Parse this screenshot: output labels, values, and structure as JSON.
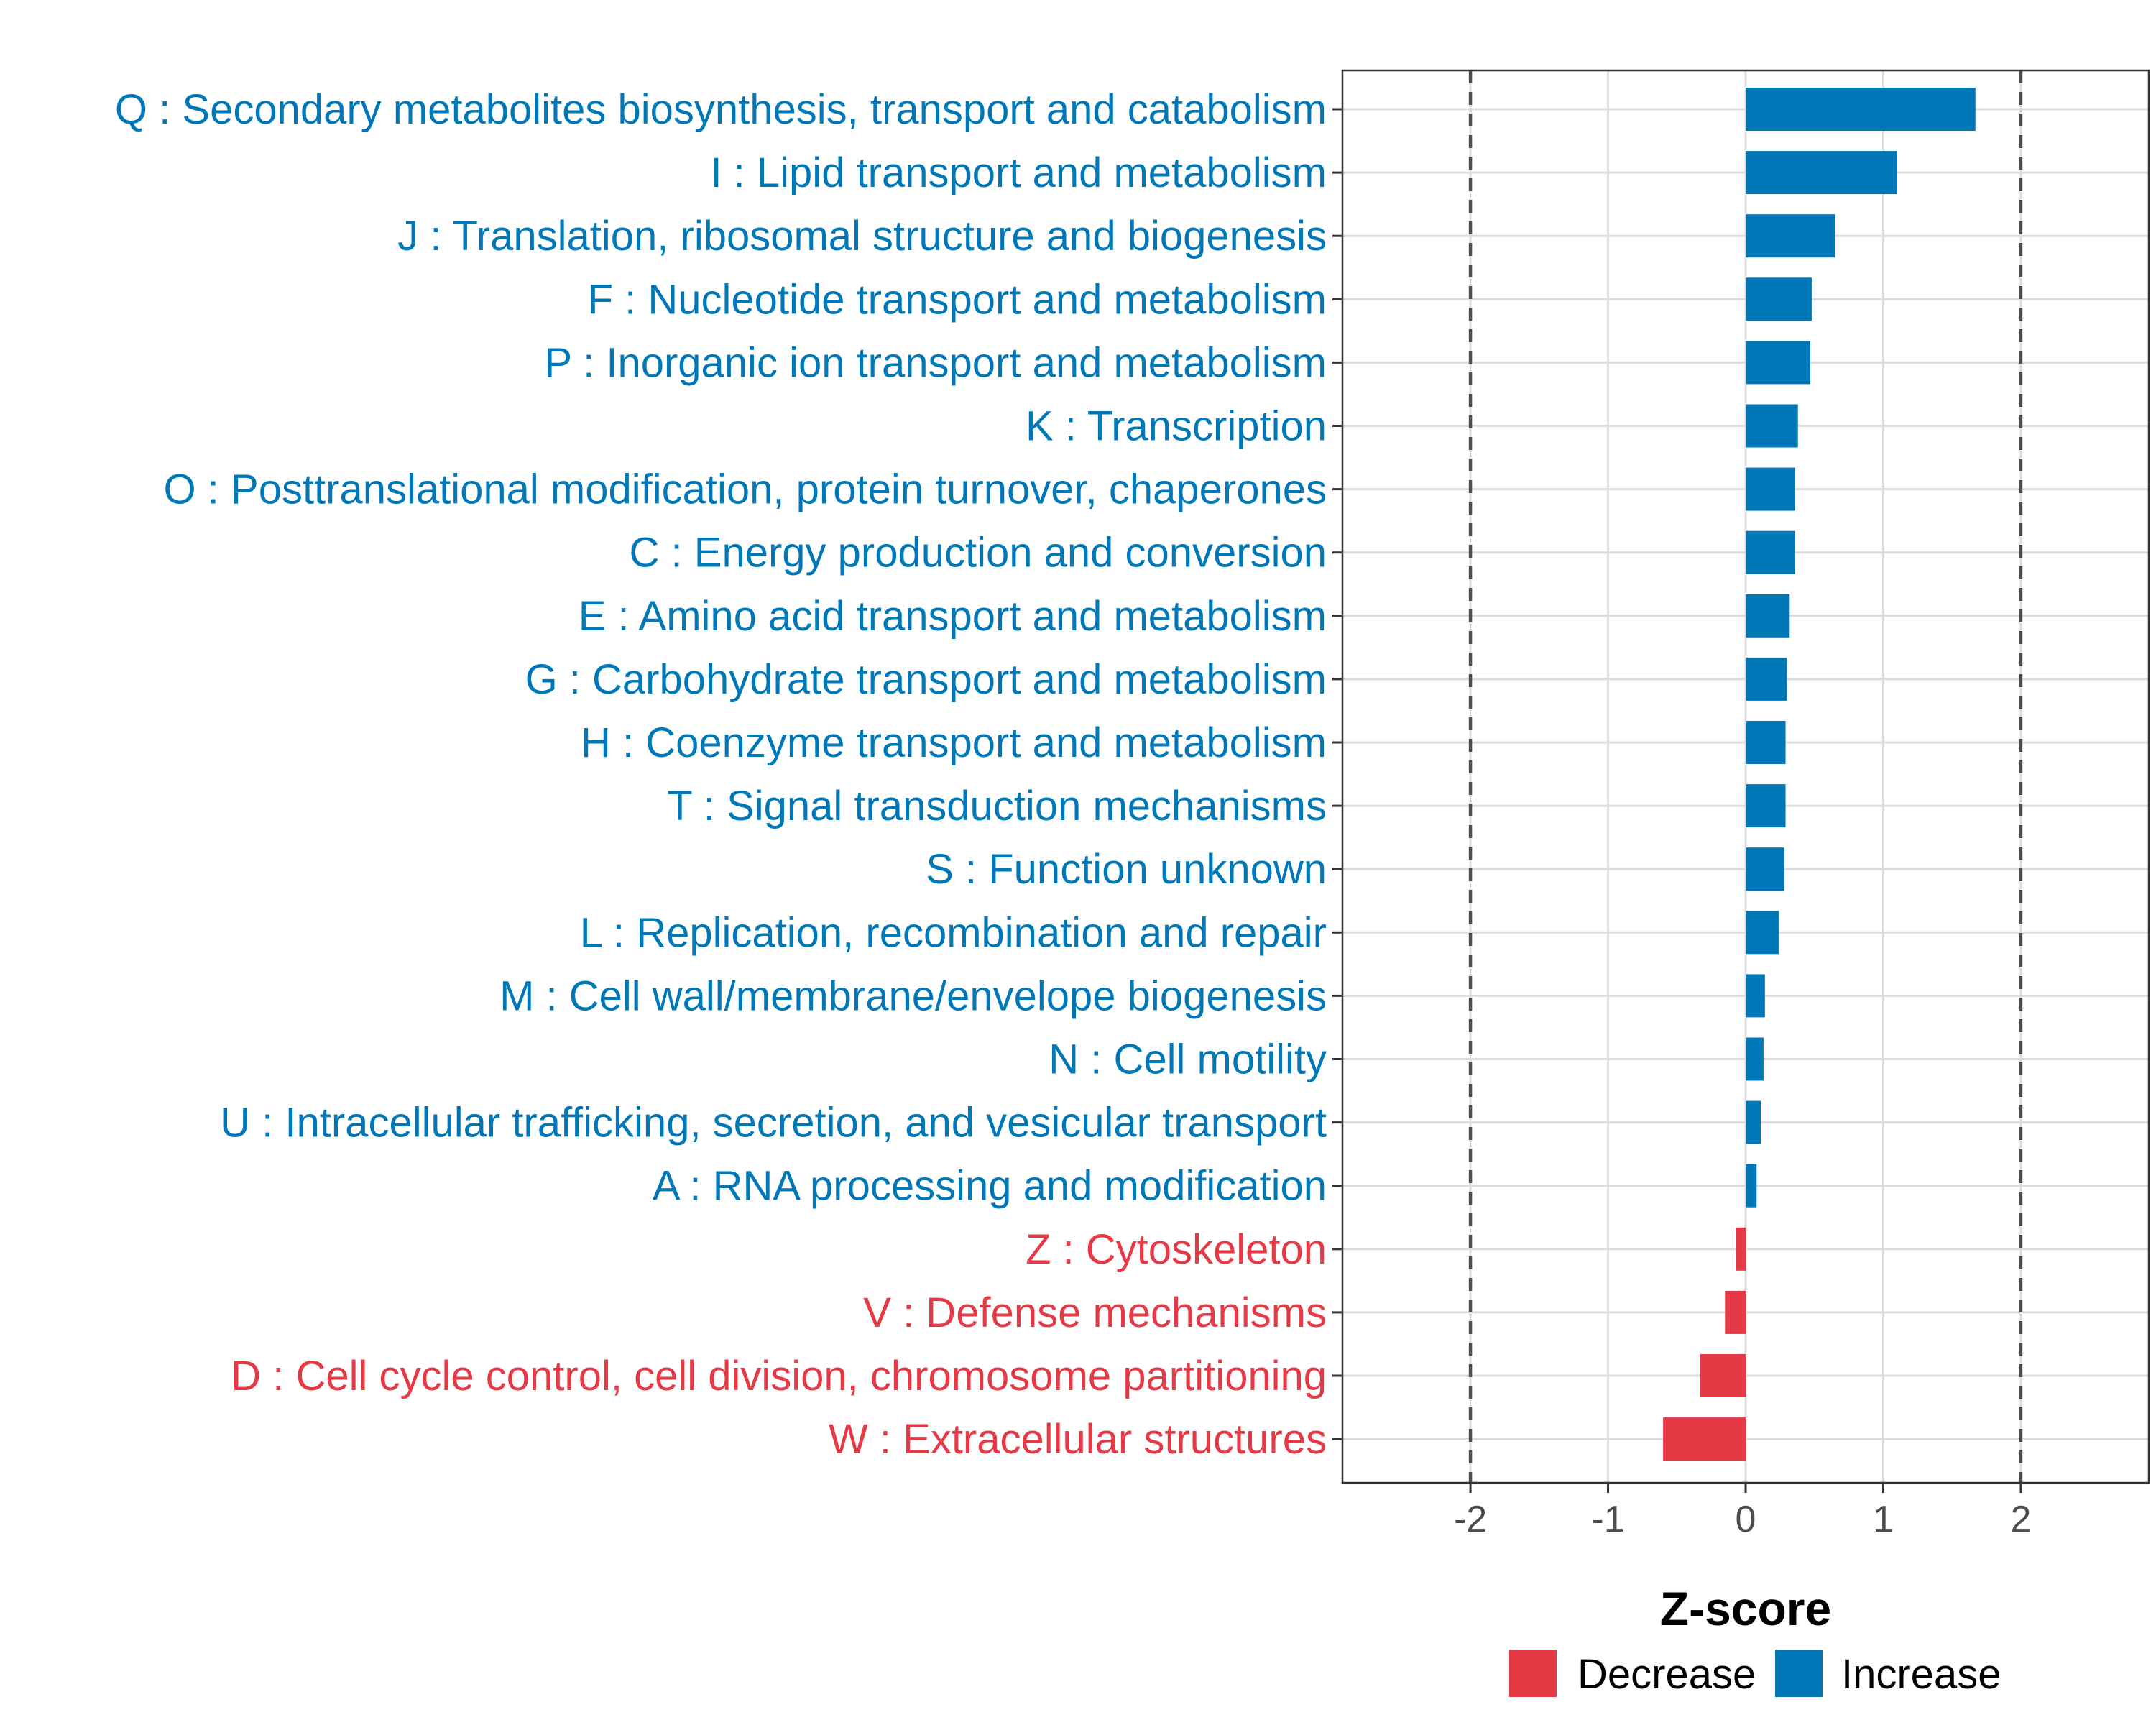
{
  "chart_data": {
    "type": "bar",
    "orientation": "horizontal",
    "title": "",
    "xlabel": "Z-score",
    "ylabel": "",
    "xlim": [
      -2.93,
      2.93
    ],
    "x_ticks": [
      -2,
      -1,
      0,
      1,
      2
    ],
    "x_tick_labels": [
      "-2",
      "-1",
      "0",
      "1",
      "2"
    ],
    "reference_lines": [
      -2,
      2
    ],
    "grid": true,
    "legend_position": "bottom",
    "colors": {
      "Decrease": "#e63946",
      "Increase": "#0078b8"
    },
    "categories": [
      "Q : Secondary metabolites biosynthesis, transport and catabolism",
      "I : Lipid transport and metabolism",
      "J : Translation, ribosomal structure and biogenesis",
      "F : Nucleotide transport and metabolism",
      "P : Inorganic ion transport and metabolism",
      "K : Transcription",
      "O : Posttranslational modification, protein turnover, chaperones",
      "C : Energy production and conversion",
      "E : Amino acid transport and metabolism",
      "G : Carbohydrate transport and metabolism",
      "H : Coenzyme transport and metabolism",
      "T : Signal transduction mechanisms",
      "S : Function unknown",
      "L : Replication, recombination and repair",
      "M : Cell wall/membrane/envelope biogenesis",
      "N : Cell motility",
      "U : Intracellular trafficking, secretion, and vesicular transport",
      "A : RNA processing and modification",
      "Z : Cytoskeleton",
      "V : Defense mechanisms",
      "D : Cell cycle control, cell division, chromosome partitioning",
      "W : Extracellular structures"
    ],
    "values": [
      1.67,
      1.1,
      0.65,
      0.48,
      0.47,
      0.38,
      0.36,
      0.36,
      0.32,
      0.3,
      0.29,
      0.29,
      0.28,
      0.24,
      0.14,
      0.13,
      0.11,
      0.08,
      -0.07,
      -0.15,
      -0.33,
      -0.6
    ],
    "groups": [
      "Increase",
      "Increase",
      "Increase",
      "Increase",
      "Increase",
      "Increase",
      "Increase",
      "Increase",
      "Increase",
      "Increase",
      "Increase",
      "Increase",
      "Increase",
      "Increase",
      "Increase",
      "Increase",
      "Increase",
      "Increase",
      "Decrease",
      "Decrease",
      "Decrease",
      "Decrease"
    ],
    "legend": [
      {
        "label": "Decrease"
      },
      {
        "label": "Increase"
      }
    ]
  }
}
